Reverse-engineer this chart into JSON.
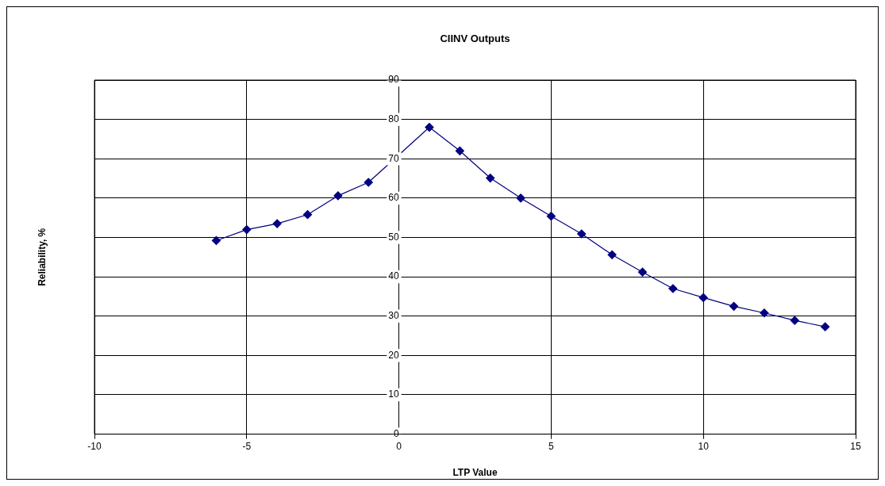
{
  "chart_data": {
    "type": "line",
    "title": "CIINV Outputs",
    "xlabel": "LTP Value",
    "ylabel": "Reliability, %",
    "x": [
      -6,
      -5,
      -4,
      -3,
      -2,
      -1,
      1,
      2,
      3,
      4,
      5,
      6,
      7,
      8,
      9,
      10,
      11,
      12,
      13,
      14
    ],
    "series": [
      {
        "color": "#000080",
        "values": [
          49.2,
          52.0,
          53.5,
          55.8,
          60.6,
          64.0,
          78.0,
          72.0,
          65.1,
          60.0,
          55.4,
          50.9,
          45.6,
          41.2,
          37.0,
          34.7,
          32.5,
          30.8,
          28.9,
          27.3
        ]
      }
    ],
    "xlim": [
      -10,
      15
    ],
    "xticks": [
      -10,
      -5,
      0,
      5,
      10,
      15
    ],
    "ylim": [
      0,
      90
    ],
    "yticks": [
      0,
      10,
      20,
      30,
      40,
      50,
      60,
      70,
      80,
      90
    ],
    "grid": true,
    "legend": false,
    "marker": "diamond",
    "line_style": "solid"
  }
}
